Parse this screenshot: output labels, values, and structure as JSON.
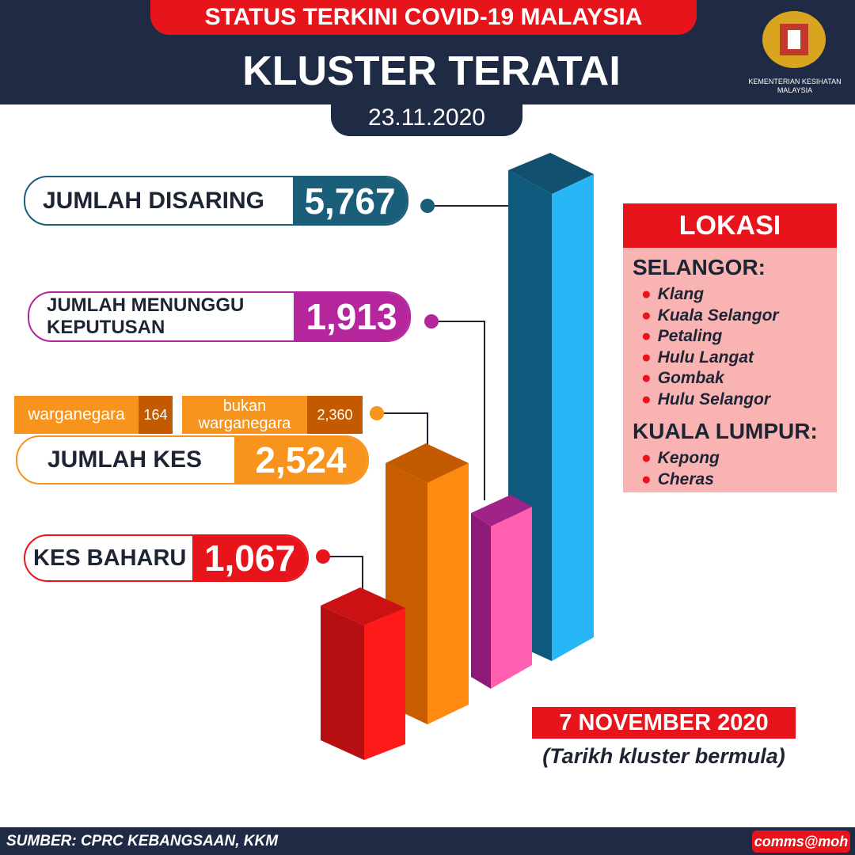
{
  "header": {
    "top_banner": "STATUS TERKINI COVID-19 MALAYSIA",
    "title": "KLUSTER TERATAI",
    "date": "23.11.2020",
    "logo_text": "KEMENTERIAN KESIHATAN MALAYSIA"
  },
  "stats": [
    {
      "label": "JUMLAH DISARING",
      "value": "5,767"
    },
    {
      "label": "JUMLAH MENUNGGU KEPUTUSAN",
      "value": "1,913"
    },
    {
      "label": "JUMLAH KES",
      "value": "2,524"
    },
    {
      "label": "KES BAHARU",
      "value": "1,067"
    }
  ],
  "breakdown": [
    {
      "label": "warganegara",
      "value": "164"
    },
    {
      "label": "bukan warganegara",
      "value": "2,360"
    }
  ],
  "location": {
    "title": "LOKASI",
    "groups": [
      {
        "name": "SELANGOR:",
        "places": [
          "Klang",
          "Kuala Selangor",
          "Petaling",
          "Hulu Langat",
          "Gombak",
          "Hulu Selangor"
        ]
      },
      {
        "name": "KUALA LUMPUR:",
        "places": [
          "Kepong",
          "Cheras"
        ]
      }
    ]
  },
  "start": {
    "date": "7 NOVEMBER 2020",
    "note": "(Tarikh kluster bermula)"
  },
  "footer": {
    "source": "SUMBER: CPRC KEBANGSAAN, KKM",
    "handle": "comms@moh"
  }
}
